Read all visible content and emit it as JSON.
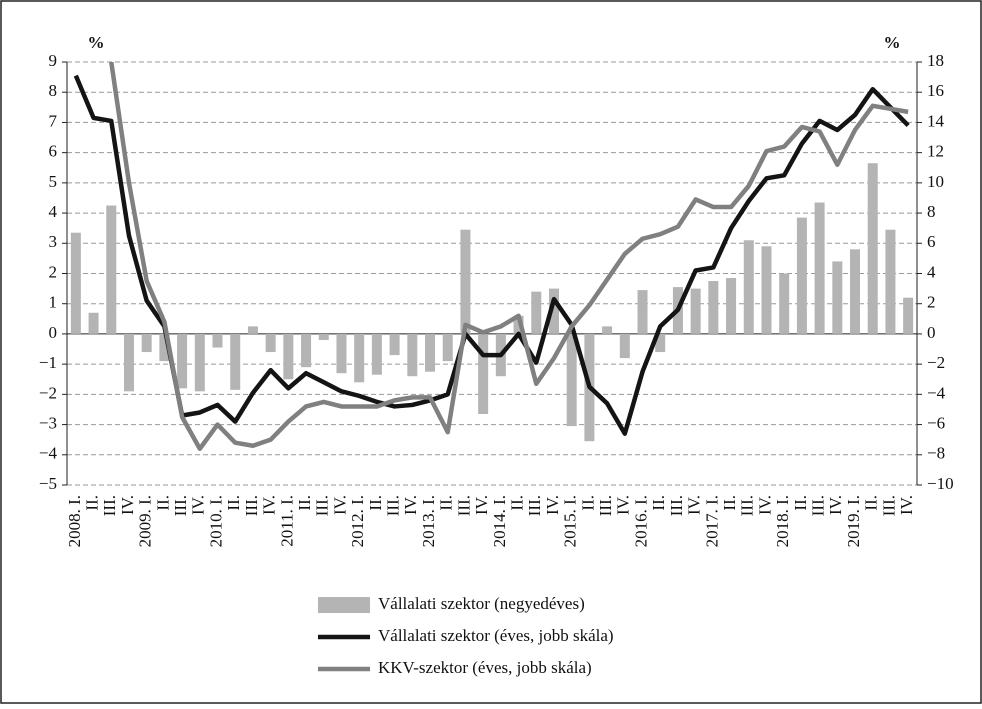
{
  "chart_data": {
    "type": "bar-line",
    "left_unit": "%",
    "right_unit": "%",
    "categories": [
      "2008. I.",
      "II.",
      "III.",
      "IV.",
      "2009. I.",
      "II.",
      "III.",
      "IV.",
      "2010. I.",
      "II.",
      "III.",
      "IV.",
      "2011. I.",
      "II.",
      "III.",
      "IV.",
      "2012. I.",
      "II.",
      "III.",
      "IV.",
      "2013. I.",
      "II.",
      "III.",
      "IV.",
      "2014. I.",
      "II.",
      "III.",
      "IV.",
      "2015. I.",
      "II.",
      "III.",
      "IV.",
      "2016. I.",
      "II.",
      "III.",
      "IV.",
      "2017. I.",
      "II.",
      "III.",
      "IV.",
      "2018. I.",
      "II.",
      "III.",
      "IV.",
      "2019. I.",
      "II.",
      "III.",
      "IV."
    ],
    "series": [
      {
        "name": "Vállalati szektor (negyedéves)",
        "color": "#b4b4b4",
        "kind": "bar",
        "axis": "y",
        "values": [
          3.35,
          0.7,
          4.25,
          -1.9,
          -0.6,
          -0.9,
          -1.8,
          -1.9,
          -0.45,
          -1.85,
          0.25,
          -0.6,
          -1.5,
          -1.1,
          -0.2,
          -1.3,
          -1.6,
          -1.35,
          -0.7,
          -1.4,
          -1.25,
          -0.9,
          3.45,
          -2.65,
          -1.4,
          0.6,
          1.4,
          1.5,
          -3.05,
          -3.55,
          0.25,
          -0.8,
          1.45,
          -0.6,
          1.55,
          1.5,
          1.75,
          1.85,
          3.1,
          2.9,
          2.0,
          3.85,
          4.35,
          2.4,
          2.8,
          5.65,
          3.45,
          1.2
        ]
      },
      {
        "name": "Vállalati szektor (éves, jobb skála)",
        "color": "#141414",
        "kind": "line",
        "axis": "y2",
        "values": [
          17.1,
          14.3,
          14.1,
          6.5,
          2.2,
          0.5,
          -5.4,
          -5.2,
          -4.7,
          -5.8,
          -3.9,
          -2.4,
          -3.6,
          -2.6,
          -3.2,
          -3.8,
          -4.1,
          -4.5,
          -4.8,
          -4.7,
          -4.4,
          -4.0,
          0,
          -1.4,
          -1.4,
          0,
          -1.9,
          2.3,
          0.6,
          -3.5,
          -4.6,
          -6.6,
          -2.5,
          0.5,
          1.6,
          4.2,
          4.4,
          7,
          8.8,
          10.3,
          10.5,
          12.6,
          14.1,
          13.5,
          14.5,
          16.2,
          15,
          13.8
        ]
      },
      {
        "name": "KKV-szektor (éves, jobb skála)",
        "color": "#808080",
        "kind": "line",
        "axis": "y2",
        "values": [
          null,
          null,
          18,
          10,
          3.5,
          0.8,
          -5.5,
          -7.6,
          -6,
          -7.2,
          -7.4,
          -7,
          -5.8,
          -4.8,
          -4.5,
          -4.8,
          -4.8,
          -4.8,
          -4.4,
          -4.2,
          -4.2,
          -6.5,
          0.6,
          0.1,
          0.5,
          1.2,
          -3.3,
          -1.6,
          0.5,
          1.9,
          3.6,
          5.3,
          6.3,
          6.6,
          7.1,
          8.9,
          8.4,
          8.4,
          9.8,
          12.1,
          12.4,
          13.7,
          13.4,
          11.2,
          13.5,
          15.1,
          14.9,
          14.7
        ]
      }
    ],
    "ylim": [
      -5,
      9
    ],
    "yticks": [
      {
        "value": -5,
        "label": "−5"
      },
      {
        "value": -4,
        "label": "−4"
      },
      {
        "value": -3,
        "label": "−3"
      },
      {
        "value": -2,
        "label": "−2"
      },
      {
        "value": -1,
        "label": "−1"
      },
      0,
      1,
      2,
      3,
      4,
      5,
      6,
      7,
      8,
      9
    ],
    "y2lim": [
      -10,
      18
    ],
    "y2ticks": [
      {
        "value": -10,
        "label": "−10"
      },
      {
        "value": -8,
        "label": "−8"
      },
      {
        "value": -6,
        "label": "−6"
      },
      {
        "value": -4,
        "label": "−4"
      },
      {
        "value": -2,
        "label": "−2"
      },
      0,
      2,
      4,
      6,
      8,
      10,
      12,
      14,
      16,
      18
    ],
    "grid": true
  }
}
